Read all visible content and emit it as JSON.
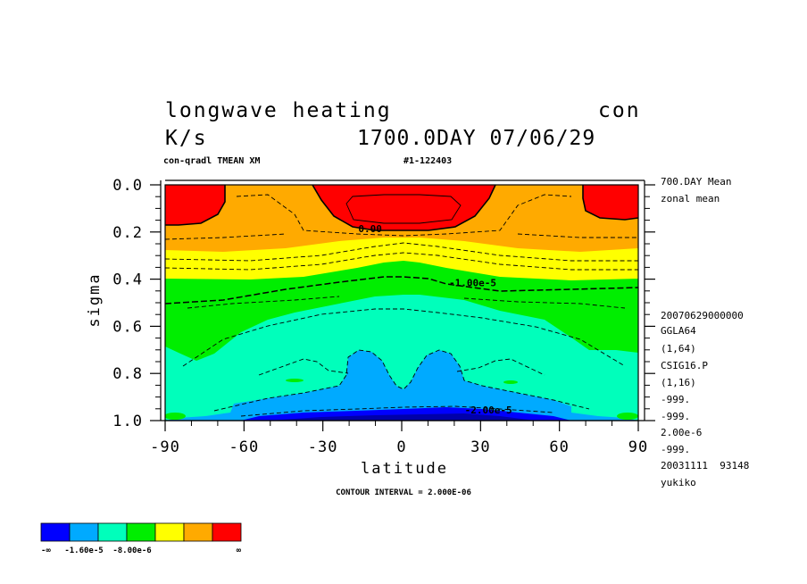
{
  "header": {
    "title_left": "longwave heating",
    "title_right": "con",
    "units": "K/s",
    "time": "1700.0DAY 07/06/29",
    "subtitle_left": "con-qradl TMEAN XM",
    "subtitle_right": "#1-122403"
  },
  "side_info": [
    "700.DAY Mean",
    "zonal mean",
    "20070629000000",
    "GGLA64",
    "(1,64)",
    "CSIG16.P",
    "(1,16)",
    "-999.",
    "-999.",
    "2.00e-6",
    "-999.",
    "20031111  93148",
    "yukiko"
  ],
  "footer": {
    "contour_interval": "CONTOUR INTERVAL = 2.000E-06"
  },
  "colorbar": {
    "colors": [
      "#0000ff",
      "#00aaff",
      "#00ffbb",
      "#00ee00",
      "#ffff00",
      "#ffaa00",
      "#ff0000"
    ],
    "labels": [
      "-∞",
      "-1.60e-5",
      "-8.00e-6",
      "∞"
    ]
  },
  "chart_data": {
    "type": "heatmap",
    "xlabel": "latitude",
    "ylabel": "sigma",
    "xlim": [
      -90,
      90
    ],
    "ylim": [
      1.0,
      0.0
    ],
    "xticks": [
      "-90",
      "-60",
      "-30",
      "0",
      "30",
      "60",
      "90"
    ],
    "yticks": [
      "0.0",
      "0.2",
      "0.4",
      "0.6",
      "0.8",
      "1.0"
    ],
    "contour_labels": [
      {
        "text": "0.00",
        "lat": -12,
        "sigma": 0.2
      },
      {
        "text": "-1.00e-5",
        "lat": 27,
        "sigma": 0.43
      },
      {
        "text": "-2.00e-5",
        "lat": 33,
        "sigma": 0.97
      }
    ],
    "contour_interval": 2e-06,
    "filled_bands": [
      {
        "range": "< -2.4e-5",
        "color": "#0000ff"
      },
      {
        "range": "-2.4e-5 to -1.6e-5",
        "color": "#00aaff"
      },
      {
        "range": "-1.6e-5 to -8.0e-6",
        "color": "#00ffbb"
      },
      {
        "range": "-8.0e-6 to -4.0e-6",
        "color": "#00ee00"
      },
      {
        "range": "-4.0e-6 to -2.0e-6",
        "color": "#ffff00"
      },
      {
        "range": "-2.0e-6 to 0.0",
        "color": "#ffaa00"
      },
      {
        "range": "> 0.0",
        "color": "#ff0000"
      }
    ]
  }
}
